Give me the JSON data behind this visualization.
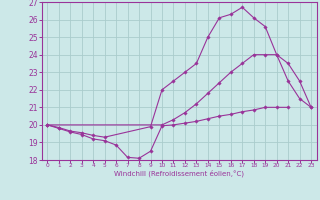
{
  "xlabel": "Windchill (Refroidissement éolien,°C)",
  "xlim": [
    -0.5,
    23.5
  ],
  "ylim": [
    18,
    27
  ],
  "xticks": [
    0,
    1,
    2,
    3,
    4,
    5,
    6,
    7,
    8,
    9,
    10,
    11,
    12,
    13,
    14,
    15,
    16,
    17,
    18,
    19,
    20,
    21,
    22,
    23
  ],
  "yticks": [
    18,
    19,
    20,
    21,
    22,
    23,
    24,
    25,
    26,
    27
  ],
  "bg_color": "#cce8e8",
  "grid_color": "#aacccc",
  "line_color": "#993399",
  "line1_x": [
    0,
    1,
    2,
    3,
    4,
    5,
    6,
    7,
    8,
    9,
    10,
    11,
    12,
    13,
    14,
    15,
    16,
    17,
    18,
    19,
    20,
    21
  ],
  "line1_y": [
    20.0,
    19.8,
    19.6,
    19.45,
    19.2,
    19.1,
    18.85,
    18.15,
    18.1,
    18.5,
    19.95,
    20.0,
    20.1,
    20.2,
    20.35,
    20.5,
    20.6,
    20.75,
    20.85,
    21.0,
    21.0,
    21.0
  ],
  "line2_x": [
    0,
    1,
    2,
    3,
    4,
    5,
    9,
    10,
    11,
    12,
    13,
    14,
    15,
    16,
    17,
    18,
    19,
    20,
    21,
    22,
    23
  ],
  "line2_y": [
    20.0,
    19.85,
    19.65,
    19.55,
    19.4,
    19.3,
    19.9,
    22.0,
    22.5,
    23.0,
    23.5,
    25.0,
    26.1,
    26.3,
    26.7,
    26.1,
    25.6,
    24.0,
    22.5,
    21.5,
    21.0
  ],
  "line3_x": [
    0,
    10,
    11,
    12,
    13,
    14,
    15,
    16,
    17,
    18,
    19,
    20,
    21,
    22,
    23
  ],
  "line3_y": [
    20.0,
    20.0,
    20.3,
    20.7,
    21.2,
    21.8,
    22.4,
    23.0,
    23.5,
    24.0,
    24.0,
    24.0,
    23.5,
    22.5,
    21.0
  ]
}
